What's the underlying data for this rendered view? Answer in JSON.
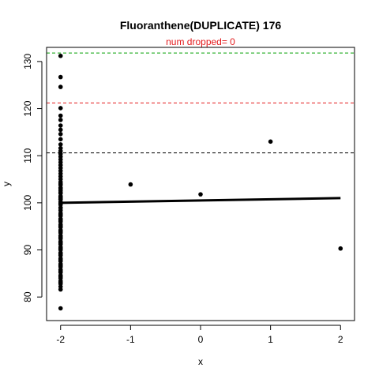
{
  "chart_data": {
    "type": "scatter",
    "title": "Fluoranthene(DUPLICATE) 176",
    "subtitle": "num dropped= 0",
    "subtitle_color": "#e31a1c",
    "xlabel": "x",
    "ylabel": "y",
    "xlim": [
      -2.2,
      2.2
    ],
    "ylim": [
      75,
      133
    ],
    "x_ticks": [
      -2,
      -1,
      0,
      1,
      2
    ],
    "y_ticks": [
      80,
      90,
      100,
      110,
      120,
      130
    ],
    "grid": false,
    "points": {
      "x": [
        -2,
        -2,
        -2,
        -2,
        -2,
        -2,
        -2,
        -2,
        -2,
        -2,
        -2,
        -2,
        -2,
        -2,
        -2,
        -2,
        -2,
        -2,
        -2,
        -2,
        -2,
        -2,
        -2,
        -2,
        -2,
        -2,
        -2,
        -2,
        -2,
        -2,
        -2,
        -2,
        -2,
        -2,
        -2,
        -2,
        -2,
        -2,
        -2,
        -2,
        -2,
        -2,
        -2,
        -2,
        -2,
        -2,
        -2,
        -2,
        -2,
        -2,
        -2,
        -2,
        -2,
        -2,
        -2,
        -2,
        -2,
        -2,
        -2,
        -2,
        -2,
        -2,
        -2,
        -2,
        -2,
        -2,
        -2,
        -2,
        -2,
        -2,
        -2,
        -2,
        -2,
        -2,
        -2,
        -2,
        -2,
        -2,
        -2,
        -2,
        -2,
        -2,
        -2,
        -2,
        -1,
        0,
        1,
        2
      ],
      "y": [
        131.2,
        126.7,
        124.6,
        120.1,
        118.5,
        117.6,
        116.4,
        115.5,
        114.6,
        113.5,
        112.4,
        111.6,
        111.0,
        110.4,
        109.8,
        109.2,
        108.6,
        108.0,
        107.4,
        106.8,
        106.2,
        105.6,
        105.0,
        104.4,
        103.8,
        103.2,
        102.6,
        102.0,
        101.4,
        100.8,
        100.2,
        99.6,
        99.0,
        98.4,
        97.8,
        97.2,
        96.6,
        96.0,
        95.4,
        94.8,
        94.2,
        93.6,
        93.0,
        92.4,
        91.8,
        91.2,
        90.6,
        90.0,
        89.4,
        88.8,
        88.2,
        87.6,
        87.0,
        86.4,
        85.8,
        85.2,
        84.6,
        84.0,
        83.4,
        82.8,
        82.2,
        81.6,
        77.6,
        101.3,
        100.7,
        99.9,
        98.9,
        97.5,
        96.3,
        95.1,
        93.9,
        92.7,
        91.5,
        90.3,
        89.1,
        87.9,
        86.7,
        85.5,
        84.3,
        83.1,
        104.0,
        103.0,
        102.2,
        101.0,
        103.9,
        101.8,
        113.0,
        90.3
      ]
    },
    "reference_lines": [
      {
        "y": 131.8,
        "color": "#00a000",
        "style": "dashed"
      },
      {
        "y": 121.2,
        "color": "#e31a1c",
        "style": "dashed"
      },
      {
        "y": 110.6,
        "color": "#000000",
        "style": "dashed"
      }
    ],
    "fit_line": {
      "x": [
        -2,
        2
      ],
      "y": [
        100.0,
        101.0
      ],
      "color": "#000000"
    }
  }
}
